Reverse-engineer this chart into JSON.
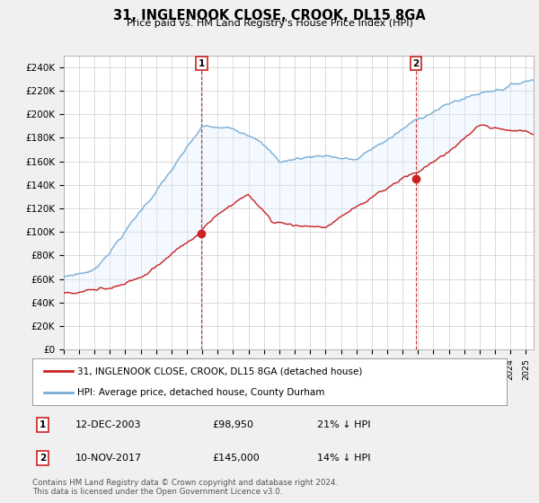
{
  "title": "31, INGLENOOK CLOSE, CROOK, DL15 8GA",
  "subtitle": "Price paid vs. HM Land Registry's House Price Index (HPI)",
  "ylabel_ticks": [
    "£0",
    "£20K",
    "£40K",
    "£60K",
    "£80K",
    "£100K",
    "£120K",
    "£140K",
    "£160K",
    "£180K",
    "£200K",
    "£220K",
    "£240K"
  ],
  "ytick_values": [
    0,
    20000,
    40000,
    60000,
    80000,
    100000,
    120000,
    140000,
    160000,
    180000,
    200000,
    220000,
    240000
  ],
  "ylim": [
    0,
    250000
  ],
  "xlim_start": 1995.0,
  "xlim_end": 2025.5,
  "hpi_color": "#7aadd4",
  "price_color": "#cc2222",
  "fill_color": "#ddeeff",
  "marker1_x": 2003.95,
  "marker1_y": 98950,
  "marker2_x": 2017.85,
  "marker2_y": 145000,
  "legend_line1": "31, INGLENOOK CLOSE, CROOK, DL15 8GA (detached house)",
  "legend_line2": "HPI: Average price, detached house, County Durham",
  "marker1_date": "12-DEC-2003",
  "marker1_price": "£98,950",
  "marker1_hpi": "21% ↓ HPI",
  "marker2_date": "10-NOV-2017",
  "marker2_price": "£145,000",
  "marker2_hpi": "14% ↓ HPI",
  "footer": "Contains HM Land Registry data © Crown copyright and database right 2024.\nThis data is licensed under the Open Government Licence v3.0.",
  "background_color": "#f0f0f0",
  "plot_background": "#ffffff"
}
